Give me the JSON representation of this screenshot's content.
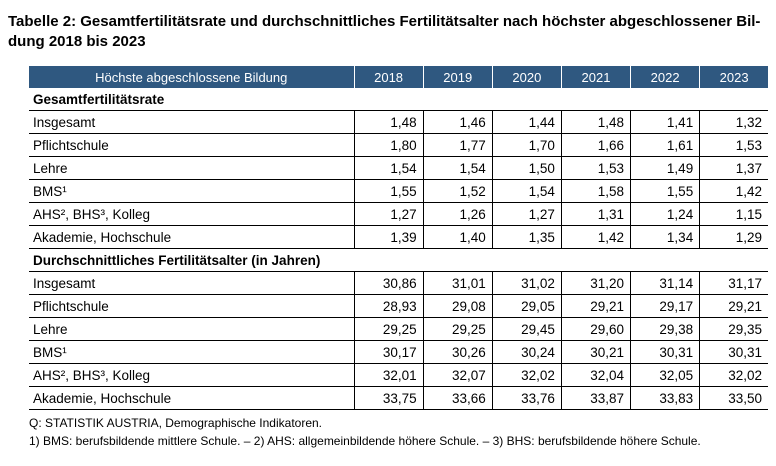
{
  "title": "Tabelle 2: Gesamtfertilitätsrate und durchschnittliches Fertilitätsalter nach höchster abgeschlossener Bil-dung 2018 bis 2023",
  "table": {
    "header_label": "Höchste abgeschlossene Bildung",
    "years": [
      "2018",
      "2019",
      "2020",
      "2021",
      "2022",
      "2023"
    ],
    "sections": [
      {
        "heading": "Gesamtfertilitätsrate",
        "rows": [
          {
            "label": "Insgesamt",
            "values": [
              "1,48",
              "1,46",
              "1,44",
              "1,48",
              "1,41",
              "1,32"
            ]
          },
          {
            "label": "Pflichtschule",
            "values": [
              "1,80",
              "1,77",
              "1,70",
              "1,66",
              "1,61",
              "1,53"
            ]
          },
          {
            "label": "Lehre",
            "values": [
              "1,54",
              "1,54",
              "1,50",
              "1,53",
              "1,49",
              "1,37"
            ]
          },
          {
            "label": "BMS¹",
            "values": [
              "1,55",
              "1,52",
              "1,54",
              "1,58",
              "1,55",
              "1,42"
            ]
          },
          {
            "label": "AHS², BHS³, Kolleg",
            "values": [
              "1,27",
              "1,26",
              "1,27",
              "1,31",
              "1,24",
              "1,15"
            ]
          },
          {
            "label": "Akademie, Hochschule",
            "values": [
              "1,39",
              "1,40",
              "1,35",
              "1,42",
              "1,34",
              "1,29"
            ]
          }
        ]
      },
      {
        "heading": "Durchschnittliches Fertilitätsalter (in Jahren)",
        "rows": [
          {
            "label": "Insgesamt",
            "values": [
              "30,86",
              "31,01",
              "31,02",
              "31,20",
              "31,14",
              "31,17"
            ]
          },
          {
            "label": "Pflichtschule",
            "values": [
              "28,93",
              "29,08",
              "29,05",
              "29,21",
              "29,17",
              "29,21"
            ]
          },
          {
            "label": "Lehre",
            "values": [
              "29,25",
              "29,25",
              "29,45",
              "29,60",
              "29,38",
              "29,35"
            ]
          },
          {
            "label": "BMS¹",
            "values": [
              "30,17",
              "30,26",
              "30,24",
              "30,21",
              "30,31",
              "30,31"
            ]
          },
          {
            "label": "AHS², BHS³, Kolleg",
            "values": [
              "32,01",
              "32,07",
              "32,02",
              "32,04",
              "32,05",
              "32,02"
            ]
          },
          {
            "label": "Akademie, Hochschule",
            "values": [
              "33,75",
              "33,66",
              "33,76",
              "33,87",
              "33,83",
              "33,50"
            ]
          }
        ]
      }
    ]
  },
  "notes": {
    "source": "Q: STATISTIK AUSTRIA, Demographische Indikatoren.",
    "footnotes": "1) BMS: berufsbildende mittlere Schule. – 2) AHS: allgemeinbildende höhere Schule. – 3) BHS: berufsbildende höhere Schule."
  },
  "colors": {
    "header_bg": "#2f5880",
    "header_text": "#ffffff"
  }
}
